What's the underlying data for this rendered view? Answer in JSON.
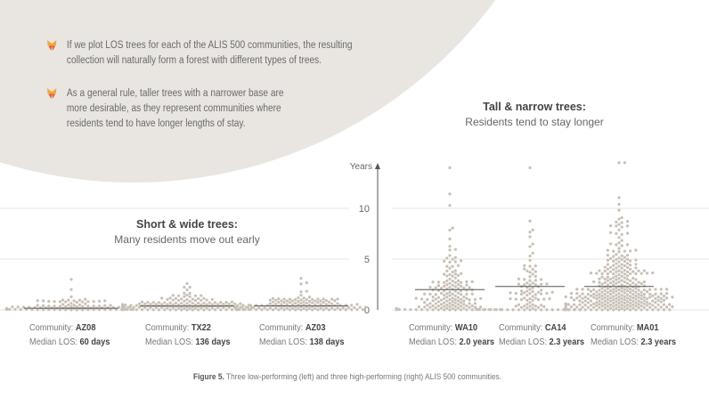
{
  "bullets": [
    "If we plot LOS trees for each of the ALIS 500 communities, the resulting\n collection will naturally form a forest with different types of trees.",
    "As a general rule, taller trees with a narrower base are\nmore desirable, as they represent communities where\nresidents tend to have longer lengths of stay."
  ],
  "colors": {
    "background_blob": "#e9e6e1",
    "dot": "#c8c0b6",
    "median_line": "#555555",
    "grid": "#e4e4e4",
    "icon": "#f0a030"
  },
  "chart_data": {
    "type": "scatter",
    "subtype": "beeswarm",
    "ylabel": "Years",
    "ylim": [
      0,
      14.5
    ],
    "yticks": [
      "0",
      "5",
      "10"
    ],
    "grid": true,
    "groups": [
      {
        "title": "Short & wide trees:",
        "subtitle": "Many residents move out early"
      },
      {
        "title": "Tall & narrow trees:",
        "subtitle": "Residents tend to stay longer"
      }
    ],
    "community_prefix": "Community: ",
    "median_prefix": "Median LOS: ",
    "series": [
      {
        "name": "AZ08",
        "median_label": "60 days",
        "median_years": 0.16,
        "max_years": 3.0,
        "n": 110,
        "scale": 0.5
      },
      {
        "name": "TX22",
        "median_label": "136 days",
        "median_years": 0.37,
        "max_years": 2.6,
        "n": 200,
        "scale": 0.6
      },
      {
        "name": "AZ03",
        "median_label": "138 days",
        "median_years": 0.38,
        "max_years": 3.1,
        "n": 160,
        "scale": 0.7
      },
      {
        "name": "WA10",
        "median_label": "2.0 years",
        "median_years": 2.0,
        "max_years": 14.0,
        "n": 190,
        "scale": 2.6
      },
      {
        "name": "CA14",
        "median_label": "2.3 years",
        "median_years": 2.3,
        "max_years": 14.0,
        "n": 110,
        "scale": 3.0
      },
      {
        "name": "MA01",
        "median_label": "2.3 years",
        "median_years": 2.3,
        "max_years": 14.5,
        "n": 420,
        "scale": 3.0
      }
    ]
  },
  "caption": {
    "label": "Figure 5.",
    "text": " Three low-performing (left) and three high-performing (right)  ALIS 500 communities."
  }
}
